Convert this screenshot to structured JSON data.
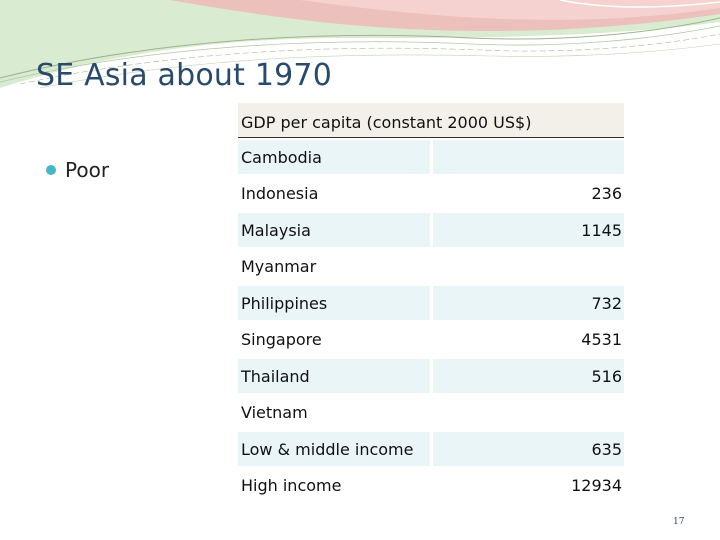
{
  "slide": {
    "title": "SE Asia about 1970",
    "bullet": "Poor",
    "page_number": "17"
  },
  "table": {
    "header": "GDP per capita (constant 2000 US$)",
    "rows": [
      {
        "name": "Cambodia",
        "value": ""
      },
      {
        "name": "Indonesia",
        "value": "236"
      },
      {
        "name": "Malaysia",
        "value": "1145"
      },
      {
        "name": "Myanmar",
        "value": ""
      },
      {
        "name": "Philippines",
        "value": "732"
      },
      {
        "name": "Singapore",
        "value": "4531"
      },
      {
        "name": "Thailand",
        "value": "516"
      },
      {
        "name": "Vietnam",
        "value": ""
      },
      {
        "name": "Low & middle income",
        "value": "635"
      },
      {
        "name": "High income",
        "value": "12934"
      }
    ]
  },
  "colors": {
    "title": "#2a4a6b",
    "bullet": "#49b6c8",
    "row_band": "#eaf5f7",
    "header_bg": "#f3f0ea"
  }
}
